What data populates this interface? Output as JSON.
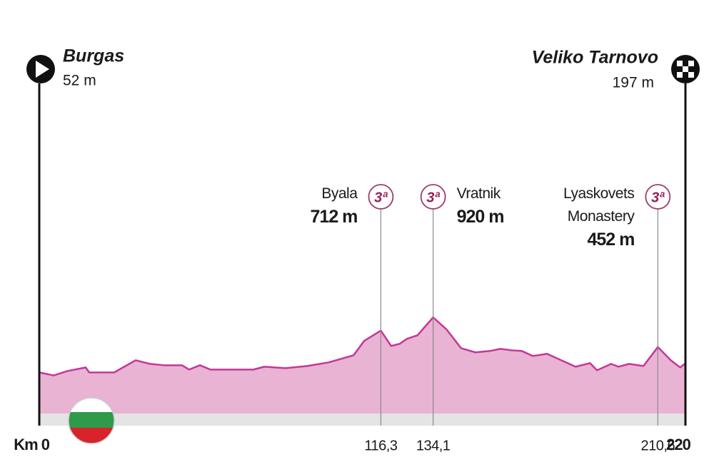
{
  "chart_data": {
    "type": "area",
    "start": {
      "name": "Burgas",
      "elevation": {
        "value": 52,
        "label": "52 m"
      }
    },
    "finish": {
      "name": "Veliko Tarnovo",
      "elevation": {
        "value": 197,
        "label": "197 m"
      }
    },
    "x": [
      0,
      4.9,
      9.7,
      15.8,
      17,
      25.5,
      32.8,
      37.7,
      42.5,
      48.6,
      51,
      54.7,
      58.3,
      72.9,
      76.6,
      83.9,
      91.2,
      98.5,
      107,
      110.6,
      116.3,
      119.8,
      122.7,
      125.2,
      128.8,
      134.1,
      138.7,
      143.6,
      148.5,
      153.4,
      157,
      160.7,
      164.3,
      168,
      172.9,
      177.7,
      182.6,
      187.5,
      189.9,
      194.7,
      197.2,
      200.8,
      205.7,
      210.6,
      215,
      218.2,
      220
    ],
    "values": [
      52,
      5,
      75,
      131,
      52,
      52,
      244,
      187,
      165,
      165,
      97,
      165,
      97,
      97,
      142,
      120,
      153,
      210,
      322,
      548,
      712,
      469,
      503,
      582,
      638,
      920,
      728,
      435,
      368,
      390,
      424,
      401,
      390,
      311,
      345,
      244,
      142,
      199,
      86,
      187,
      142,
      187,
      153,
      452,
      244,
      131,
      197
    ],
    "color": "#c4379a",
    "fill": "#e9b3d3",
    "climbs": [
      {
        "name": "Byala",
        "category": "3ª",
        "km": {
          "value": 116.3,
          "label": "116,3"
        },
        "elevation": {
          "value": 712,
          "label": "712 m"
        },
        "side": "left"
      },
      {
        "name": "Vratnik",
        "category": "3ª",
        "km": {
          "value": 134.1,
          "label": "134,1"
        },
        "elevation": {
          "value": 920,
          "label": "920 m"
        },
        "side": "right"
      },
      {
        "name": "Lyaskovets Monastery",
        "category": "3ª",
        "km": {
          "value": 210.6,
          "label": "210,6"
        },
        "elevation": {
          "value": 452,
          "label": "452 m"
        },
        "side": "left"
      }
    ],
    "xlim": [
      0,
      220
    ],
    "ylim": [
      0,
      1000
    ],
    "xticks": [
      {
        "value": 0,
        "label": "Km 0"
      },
      220
    ]
  }
}
